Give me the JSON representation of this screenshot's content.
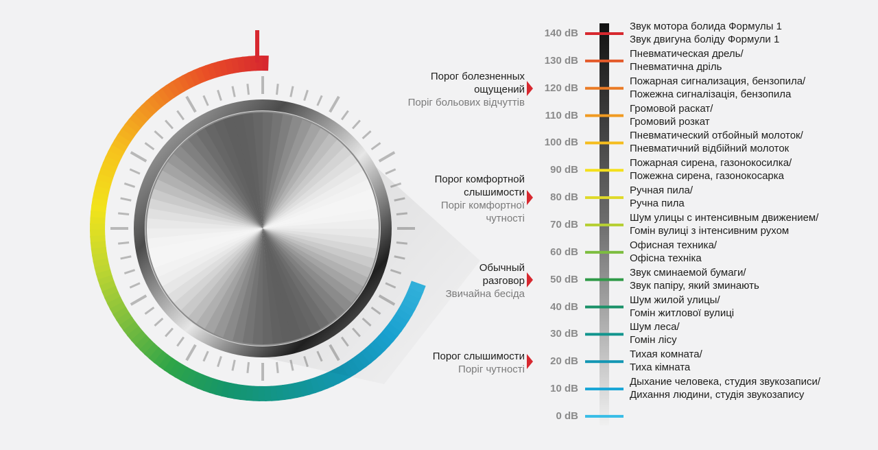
{
  "levels": [
    {
      "db": "140 dB",
      "ru": "Звук мотора болида Формулы 1",
      "ua": "Звук двигуна боліду Формули 1",
      "color": "#d7282f"
    },
    {
      "db": "130 dB",
      "ru": "Пневматическая дрель/",
      "ua": "Пневматична дріль",
      "color": "#e45a2a"
    },
    {
      "db": "120 dB",
      "ru": "Пожарная сигнализация, бензопила/",
      "ua": "Пожежна сигналізація, бензопила",
      "color": "#ea7a25"
    },
    {
      "db": "110 dB",
      "ru": "Громовой раскат/",
      "ua": "Громовий розкат",
      "color": "#f09a21"
    },
    {
      "db": "100 dB",
      "ru": "Пневматический отбойный молоток/",
      "ua": "Пневматичний відбійний молоток",
      "color": "#f5bd1e"
    },
    {
      "db": "90 dB",
      "ru": "Пожарная сирена, газонокосилка/",
      "ua": "Пожежна сирена, газонокосарка",
      "color": "#f4e01c"
    },
    {
      "db": "80 dB",
      "ru": "Ручная пила/",
      "ua": "Ручна пила",
      "color": "#dfd92a"
    },
    {
      "db": "70 dB",
      "ru": "Шум улицы с интенсивным движением/",
      "ua": "Гомін вулиці з інтенсивним рухом",
      "color": "#b6cf34"
    },
    {
      "db": "60 dB",
      "ru": "Офисная техника/",
      "ua": "Офісна техніка",
      "color": "#7cbd3e"
    },
    {
      "db": "50 dB",
      "ru": "Звук сминаемой бумаги/",
      "ua": "Звук папіру, який зминають",
      "color": "#2f9a48"
    },
    {
      "db": "40 dB",
      "ru": "Шум жилой улицы/",
      "ua": "Гомін житлової вулиці",
      "color": "#1a9168"
    },
    {
      "db": "30 dB",
      "ru": "Шум леса/",
      "ua": "Гомін лісу",
      "color": "#12958e"
    },
    {
      "db": "20 dB",
      "ru": "Тихая комната/",
      "ua": "Тиха кімната",
      "color": "#1396b3"
    },
    {
      "db": "10 dB",
      "ru": "Дыхание человека, студия звукозаписи/",
      "ua": "Дихання людини, студія звукозапису",
      "color": "#1aa6d6"
    },
    {
      "db": "0 dB",
      "ru": "",
      "ua": "",
      "color": "#38bde6"
    }
  ],
  "thresholds": [
    {
      "ru": [
        "Порог болезненных",
        "ощущений"
      ],
      "ua": [
        "Поріг больових відчуттів"
      ],
      "level": "120 dB"
    },
    {
      "ru": [
        "Порог комфортной",
        "слышимости"
      ],
      "ua": [
        "Поріг комфортної",
        "чутності"
      ],
      "level": "80 dB"
    },
    {
      "ru": [
        "Обычный",
        "разговор"
      ],
      "ua": [
        "Звичайна бесіда"
      ],
      "level": "50 dB"
    },
    {
      "ru": [
        "Порог слышимости"
      ],
      "ua": [
        "Поріг чутності"
      ],
      "level": "20 dB"
    }
  ],
  "accent_color": "#d7282f"
}
